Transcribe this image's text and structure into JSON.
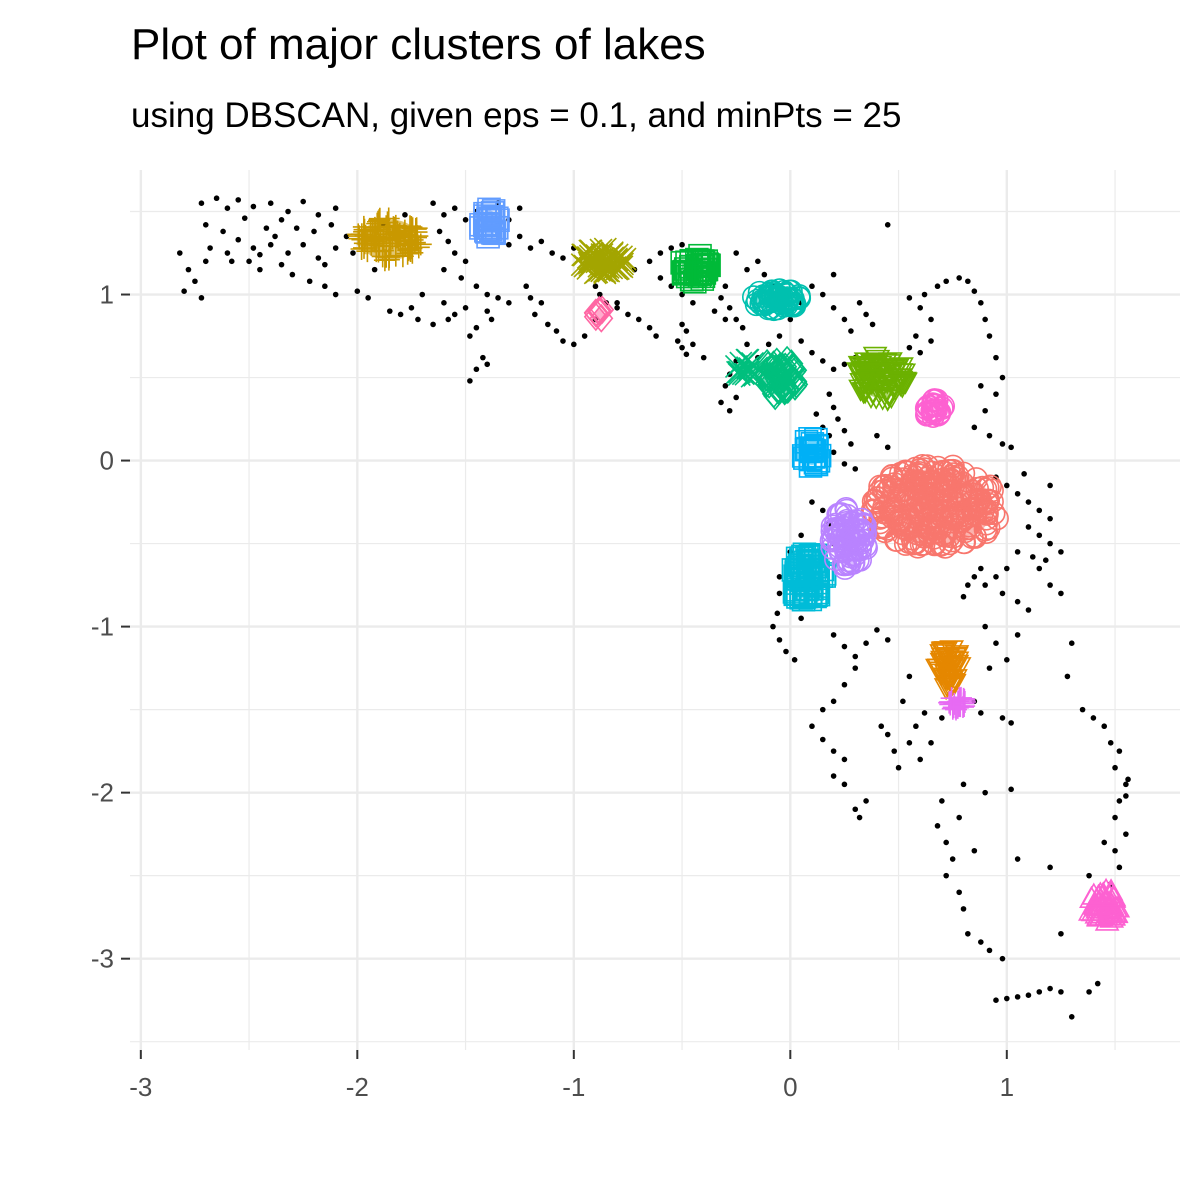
{
  "chart_data": {
    "type": "scatter",
    "title": "Plot of major clusters of lakes",
    "subtitle": "using DBSCAN, given eps = 0.1, and minPts = 25",
    "xlabel": "",
    "ylabel": "",
    "xlim": [
      -3.05,
      1.8
    ],
    "ylim": [
      -3.55,
      1.75
    ],
    "x_ticks": [
      -3,
      -2,
      -1,
      0,
      1
    ],
    "y_ticks": [
      -3,
      -2,
      -1,
      0,
      1
    ],
    "grid": true,
    "legend": "none",
    "noise_color": "#000000",
    "noise_points": [
      [
        -2.72,
        1.55
      ],
      [
        -2.65,
        1.58
      ],
      [
        -2.6,
        1.52
      ],
      [
        -2.55,
        1.57
      ],
      [
        -2.48,
        1.53
      ],
      [
        -2.4,
        1.55
      ],
      [
        -2.32,
        1.5
      ],
      [
        -2.25,
        1.56
      ],
      [
        -2.18,
        1.48
      ],
      [
        -2.1,
        1.52
      ],
      [
        -2.7,
        1.42
      ],
      [
        -2.62,
        1.38
      ],
      [
        -2.55,
        1.33
      ],
      [
        -2.48,
        1.28
      ],
      [
        -2.4,
        1.3
      ],
      [
        -2.32,
        1.25
      ],
      [
        -2.25,
        1.3
      ],
      [
        -2.18,
        1.22
      ],
      [
        -2.1,
        1.28
      ],
      [
        -2.05,
        1.35
      ],
      [
        -2.78,
        1.15
      ],
      [
        -2.75,
        1.08
      ],
      [
        -2.8,
        1.02
      ],
      [
        -2.72,
        0.98
      ],
      [
        -2.5,
        1.2
      ],
      [
        -2.45,
        1.15
      ],
      [
        -2.35,
        1.18
      ],
      [
        -2.3,
        1.12
      ],
      [
        -2.22,
        1.08
      ],
      [
        -2.15,
        1.05
      ],
      [
        -2.1,
        1.0
      ],
      [
        -2.0,
        1.02
      ],
      [
        -1.95,
        0.98
      ],
      [
        -2.6,
        1.25
      ],
      [
        -2.28,
        1.4
      ],
      [
        -2.2,
        1.38
      ],
      [
        -2.12,
        1.42
      ],
      [
        -2.35,
        1.45
      ],
      [
        -2.42,
        1.4
      ],
      [
        -2.68,
        1.28
      ],
      [
        -1.65,
        1.55
      ],
      [
        -1.6,
        1.48
      ],
      [
        -1.55,
        1.52
      ],
      [
        -1.5,
        1.45
      ],
      [
        -1.45,
        1.5
      ],
      [
        -1.62,
        1.38
      ],
      [
        -1.58,
        1.32
      ],
      [
        -1.55,
        1.25
      ],
      [
        -1.5,
        1.2
      ],
      [
        -1.6,
        1.15
      ],
      [
        -1.52,
        1.1
      ],
      [
        -1.45,
        1.05
      ],
      [
        -1.4,
        1.0
      ],
      [
        -1.35,
        0.98
      ],
      [
        -1.4,
        0.9
      ],
      [
        -1.38,
        0.85
      ],
      [
        -1.45,
        0.8
      ],
      [
        -1.5,
        0.92
      ],
      [
        -1.55,
        0.88
      ],
      [
        -1.48,
        0.75
      ],
      [
        -1.42,
        0.62
      ],
      [
        -1.45,
        0.55
      ],
      [
        -1.4,
        0.58
      ],
      [
        -1.48,
        0.48
      ],
      [
        -1.7,
        1.0
      ],
      [
        -1.75,
        0.92
      ],
      [
        -1.8,
        0.88
      ],
      [
        -1.72,
        0.85
      ],
      [
        -1.65,
        0.82
      ],
      [
        -1.58,
        0.85
      ],
      [
        -1.3,
        1.3
      ],
      [
        -1.25,
        1.35
      ],
      [
        -1.2,
        1.28
      ],
      [
        -1.15,
        1.32
      ],
      [
        -1.1,
        1.25
      ],
      [
        -1.05,
        1.22
      ],
      [
        -1.0,
        1.28
      ],
      [
        -0.95,
        1.24
      ],
      [
        -1.22,
        1.05
      ],
      [
        -1.2,
        0.98
      ],
      [
        -1.15,
        0.95
      ],
      [
        -1.18,
        0.88
      ],
      [
        -1.12,
        0.82
      ],
      [
        -1.08,
        0.78
      ],
      [
        -1.05,
        0.72
      ],
      [
        -1.0,
        0.7
      ],
      [
        -0.95,
        0.75
      ],
      [
        -0.9,
        1.05
      ],
      [
        -0.88,
        1.0
      ],
      [
        -0.85,
        0.95
      ],
      [
        -0.8,
        0.92
      ],
      [
        -0.75,
        0.88
      ],
      [
        -0.7,
        0.85
      ],
      [
        -0.72,
        1.15
      ],
      [
        -0.65,
        1.2
      ],
      [
        -0.6,
        1.25
      ],
      [
        -0.55,
        1.28
      ],
      [
        -0.5,
        1.3
      ],
      [
        -0.6,
        1.1
      ],
      [
        -0.55,
        1.05
      ],
      [
        -0.5,
        1.0
      ],
      [
        -0.45,
        0.95
      ],
      [
        -0.5,
        0.82
      ],
      [
        -0.48,
        0.78
      ],
      [
        -0.52,
        0.72
      ],
      [
        -0.5,
        0.68
      ],
      [
        -0.48,
        0.64
      ],
      [
        -0.45,
        0.7
      ],
      [
        -0.65,
        0.8
      ],
      [
        -0.62,
        0.75
      ],
      [
        -0.35,
        1.1
      ],
      [
        -0.3,
        1.05
      ],
      [
        -0.32,
        0.98
      ],
      [
        -0.28,
        0.92
      ],
      [
        -0.25,
        0.85
      ],
      [
        -0.22,
        0.8
      ],
      [
        -0.35,
        0.9
      ],
      [
        -0.3,
        0.85
      ],
      [
        -0.2,
        1.15
      ],
      [
        -0.15,
        1.2
      ],
      [
        -0.12,
        1.12
      ],
      [
        -0.08,
        1.05
      ],
      [
        -0.25,
        0.6
      ],
      [
        -0.28,
        0.52
      ],
      [
        -0.3,
        0.45
      ],
      [
        -0.32,
        0.35
      ],
      [
        -0.28,
        0.3
      ],
      [
        -0.25,
        0.38
      ],
      [
        -0.1,
        0.7
      ],
      [
        -0.05,
        0.75
      ],
      [
        0.05,
        0.72
      ],
      [
        0.1,
        0.65
      ],
      [
        0.15,
        0.6
      ],
      [
        0.2,
        0.55
      ],
      [
        0.25,
        0.58
      ],
      [
        0.3,
        0.62
      ],
      [
        0.28,
        0.78
      ],
      [
        0.25,
        0.85
      ],
      [
        0.2,
        0.92
      ],
      [
        0.15,
        1.0
      ],
      [
        0.1,
        1.05
      ],
      [
        0.2,
        1.12
      ],
      [
        0.32,
        0.95
      ],
      [
        0.35,
        0.88
      ],
      [
        0.38,
        0.82
      ],
      [
        0.18,
        0.4
      ],
      [
        0.2,
        0.32
      ],
      [
        0.22,
        0.25
      ],
      [
        0.25,
        0.18
      ],
      [
        0.28,
        0.1
      ],
      [
        0.18,
        0.15
      ],
      [
        0.15,
        0.2
      ],
      [
        0.12,
        0.28
      ],
      [
        0.2,
        0.05
      ],
      [
        0.25,
        -0.02
      ],
      [
        0.3,
        -0.05
      ],
      [
        0.45,
        1.42
      ],
      [
        0.55,
        0.98
      ],
      [
        0.6,
        0.92
      ],
      [
        0.65,
        0.85
      ],
      [
        0.62,
        1.0
      ],
      [
        0.68,
        1.05
      ],
      [
        0.72,
        1.08
      ],
      [
        0.78,
        1.1
      ],
      [
        0.82,
        1.08
      ],
      [
        0.85,
        1.02
      ],
      [
        0.88,
        0.95
      ],
      [
        0.9,
        0.85
      ],
      [
        0.92,
        0.75
      ],
      [
        0.95,
        0.62
      ],
      [
        0.98,
        0.5
      ],
      [
        0.95,
        0.4
      ],
      [
        0.9,
        0.3
      ],
      [
        0.88,
        0.45
      ],
      [
        0.85,
        0.2
      ],
      [
        0.92,
        0.15
      ],
      [
        0.98,
        0.1
      ],
      [
        1.02,
        0.08
      ],
      [
        0.6,
        0.65
      ],
      [
        0.65,
        0.72
      ],
      [
        0.58,
        0.75
      ],
      [
        0.55,
        0.68
      ],
      [
        0.95,
        -0.1
      ],
      [
        1.0,
        -0.15
      ],
      [
        1.05,
        -0.2
      ],
      [
        1.1,
        -0.25
      ],
      [
        1.15,
        -0.3
      ],
      [
        1.2,
        -0.35
      ],
      [
        1.1,
        -0.4
      ],
      [
        1.15,
        -0.45
      ],
      [
        1.2,
        -0.5
      ],
      [
        1.25,
        -0.55
      ],
      [
        1.18,
        -0.6
      ],
      [
        1.12,
        -0.58
      ],
      [
        1.05,
        -0.55
      ],
      [
        1.0,
        -0.65
      ],
      [
        0.95,
        -0.7
      ],
      [
        0.9,
        -0.75
      ],
      [
        0.98,
        -0.8
      ],
      [
        1.05,
        -0.85
      ],
      [
        1.1,
        -0.9
      ],
      [
        1.2,
        -0.75
      ],
      [
        1.25,
        -0.8
      ],
      [
        1.15,
        -0.65
      ],
      [
        0.88,
        -0.65
      ],
      [
        0.85,
        -0.7
      ],
      [
        0.82,
        -0.75
      ],
      [
        0.8,
        -0.82
      ],
      [
        1.3,
        -1.1
      ],
      [
        1.28,
        -1.3
      ],
      [
        1.0,
        -1.2
      ],
      [
        1.05,
        -1.05
      ],
      [
        0.95,
        -1.1
      ],
      [
        0.9,
        -1.0
      ],
      [
        0.92,
        -1.25
      ],
      [
        0.85,
        -1.45
      ],
      [
        0.88,
        -1.52
      ],
      [
        0.98,
        -1.55
      ],
      [
        1.02,
        -1.58
      ],
      [
        1.35,
        -1.5
      ],
      [
        1.4,
        -1.55
      ],
      [
        1.45,
        -1.6
      ],
      [
        1.48,
        -1.7
      ],
      [
        1.52,
        -1.75
      ],
      [
        1.5,
        -1.85
      ],
      [
        1.55,
        -1.95
      ],
      [
        1.52,
        -2.05
      ],
      [
        1.5,
        -2.15
      ],
      [
        1.55,
        -2.25
      ],
      [
        1.5,
        -2.35
      ],
      [
        1.52,
        -2.45
      ],
      [
        1.48,
        -2.55
      ],
      [
        1.55,
        -2.02
      ],
      [
        1.56,
        -1.92
      ],
      [
        1.45,
        -2.3
      ],
      [
        1.38,
        -2.5
      ],
      [
        0.1,
        -0.25
      ],
      [
        0.15,
        -0.3
      ],
      [
        0.18,
        -0.38
      ],
      [
        0.2,
        -0.5
      ],
      [
        0.05,
        -0.45
      ],
      [
        0.0,
        -0.55
      ],
      [
        -0.05,
        -0.7
      ],
      [
        -0.05,
        -0.8
      ],
      [
        -0.06,
        -0.92
      ],
      [
        -0.08,
        -1.0
      ],
      [
        -0.05,
        -1.08
      ],
      [
        -0.02,
        -1.15
      ],
      [
        0.02,
        -1.2
      ],
      [
        0.05,
        -0.95
      ],
      [
        0.2,
        -1.05
      ],
      [
        0.25,
        -1.12
      ],
      [
        0.3,
        -1.18
      ],
      [
        0.35,
        -1.1
      ],
      [
        0.4,
        -1.02
      ],
      [
        0.45,
        -1.08
      ],
      [
        0.3,
        -1.25
      ],
      [
        0.25,
        -1.35
      ],
      [
        0.2,
        -1.45
      ],
      [
        0.15,
        -1.5
      ],
      [
        0.1,
        -1.6
      ],
      [
        0.15,
        -1.68
      ],
      [
        0.2,
        -1.75
      ],
      [
        0.25,
        -1.8
      ],
      [
        0.2,
        -1.9
      ],
      [
        0.25,
        -1.95
      ],
      [
        0.3,
        -2.1
      ],
      [
        0.35,
        -2.05
      ],
      [
        0.32,
        -2.15
      ],
      [
        0.5,
        -1.85
      ],
      [
        0.48,
        -1.75
      ],
      [
        0.45,
        -1.65
      ],
      [
        0.42,
        -1.6
      ],
      [
        0.55,
        -1.7
      ],
      [
        0.6,
        -1.8
      ],
      [
        0.65,
        -1.7
      ],
      [
        0.58,
        -1.6
      ],
      [
        0.62,
        -1.52
      ],
      [
        0.7,
        -1.55
      ],
      [
        0.52,
        -1.45
      ],
      [
        0.68,
        -2.2
      ],
      [
        0.72,
        -2.3
      ],
      [
        0.75,
        -2.4
      ],
      [
        0.72,
        -2.5
      ],
      [
        0.78,
        -2.6
      ],
      [
        0.8,
        -2.7
      ],
      [
        0.82,
        -2.85
      ],
      [
        0.88,
        -2.9
      ],
      [
        0.92,
        -2.95
      ],
      [
        0.98,
        -3.0
      ],
      [
        0.95,
        -3.25
      ],
      [
        1.0,
        -3.24
      ],
      [
        1.05,
        -3.23
      ],
      [
        1.1,
        -3.22
      ],
      [
        1.15,
        -3.2
      ],
      [
        1.2,
        -3.18
      ],
      [
        1.25,
        -3.2
      ],
      [
        1.3,
        -3.35
      ],
      [
        1.38,
        -3.2
      ],
      [
        1.42,
        -3.15
      ],
      [
        1.05,
        -2.4
      ],
      [
        1.2,
        -2.45
      ],
      [
        1.25,
        -2.85
      ],
      [
        0.85,
        -2.35
      ],
      [
        0.78,
        -2.15
      ],
      [
        0.7,
        -2.05
      ],
      [
        0.8,
        -1.95
      ],
      [
        0.9,
        -2.0
      ],
      [
        1.02,
        -1.98
      ],
      [
        0.55,
        -1.3
      ],
      [
        -0.8,
        0.95
      ],
      [
        -0.9,
        0.85
      ],
      [
        -1.3,
        0.95
      ],
      [
        -1.6,
        0.95
      ],
      [
        -1.85,
        0.9
      ],
      [
        -1.92,
        1.15
      ],
      [
        -1.88,
        1.42
      ],
      [
        -1.78,
        1.48
      ],
      [
        -2.02,
        1.25
      ],
      [
        -2.15,
        1.18
      ],
      [
        -2.52,
        1.46
      ],
      [
        -2.38,
        1.35
      ],
      [
        -2.45,
        1.24
      ],
      [
        -2.58,
        1.2
      ],
      [
        -2.7,
        1.2
      ],
      [
        -2.82,
        1.25
      ],
      [
        -1.3,
        1.45
      ],
      [
        -1.35,
        1.55
      ],
      [
        -1.25,
        1.52
      ],
      [
        -0.25,
        1.25
      ],
      [
        0.4,
        0.15
      ],
      [
        0.45,
        0.08
      ],
      [
        0.0,
        0.85
      ],
      [
        0.05,
        0.95
      ],
      [
        -0.15,
        0.62
      ],
      [
        -0.2,
        0.7
      ],
      [
        -0.4,
        0.62
      ],
      [
        0.8,
        -0.3
      ],
      [
        1.08,
        -0.08
      ],
      [
        1.2,
        -0.15
      ]
    ],
    "clusters": [
      {
        "id": 1,
        "color": "#F8766D",
        "marker": "circle",
        "cx": 0.67,
        "cy": -0.28,
        "rx": 0.35,
        "ry": 0.3,
        "n": 260
      },
      {
        "id": 2,
        "color": "#E58700",
        "marker": "triangle-down",
        "cx": 0.73,
        "cy": -1.25,
        "rx": 0.06,
        "ry": 0.15,
        "n": 45
      },
      {
        "id": 3,
        "color": "#C99800",
        "marker": "plus",
        "cx": -1.85,
        "cy": 1.33,
        "rx": 0.18,
        "ry": 0.16,
        "n": 90
      },
      {
        "id": 4,
        "color": "#A3A500",
        "marker": "x",
        "cx": -0.87,
        "cy": 1.2,
        "rx": 0.13,
        "ry": 0.09,
        "n": 60
      },
      {
        "id": 5,
        "color": "#6BB100",
        "marker": "triangle-down",
        "cx": 0.42,
        "cy": 0.5,
        "rx": 0.14,
        "ry": 0.16,
        "n": 80
      },
      {
        "id": 6,
        "color": "#00BA38",
        "marker": "square",
        "cx": -0.44,
        "cy": 1.16,
        "rx": 0.08,
        "ry": 0.1,
        "n": 45
      },
      {
        "id": 7,
        "color": "#00BF7D",
        "marker": "diamond",
        "cx": -0.05,
        "cy": 0.5,
        "rx": 0.1,
        "ry": 0.14,
        "n": 55
      },
      {
        "id": 8,
        "color": "#00C0AF",
        "marker": "circle",
        "cx": -0.06,
        "cy": 0.97,
        "rx": 0.14,
        "ry": 0.07,
        "n": 60
      },
      {
        "id": 9,
        "color": "#00BCD8",
        "marker": "square",
        "cx": 0.08,
        "cy": -0.7,
        "rx": 0.1,
        "ry": 0.18,
        "n": 80
      },
      {
        "id": 10,
        "color": "#00B0F6",
        "marker": "square",
        "cx": 0.1,
        "cy": 0.05,
        "rx": 0.05,
        "ry": 0.1,
        "n": 25
      },
      {
        "id": 11,
        "color": "#619CFF",
        "marker": "square",
        "cx": -1.39,
        "cy": 1.43,
        "rx": 0.05,
        "ry": 0.1,
        "n": 30
      },
      {
        "id": 12,
        "color": "#B983FF",
        "marker": "circle",
        "cx": 0.27,
        "cy": -0.47,
        "rx": 0.1,
        "ry": 0.22,
        "n": 80
      },
      {
        "id": 13,
        "color": "#E76BF3",
        "marker": "plus",
        "cx": 0.77,
        "cy": -1.46,
        "rx": 0.05,
        "ry": 0.05,
        "n": 25
      },
      {
        "id": 14,
        "color": "#FD61D1",
        "marker": "triangle",
        "cx": 1.45,
        "cy": -2.68,
        "rx": 0.08,
        "ry": 0.12,
        "n": 50
      },
      {
        "id": 15,
        "color": "#FF67A4",
        "marker": "diamond",
        "cx": -0.88,
        "cy": 0.88,
        "rx": 0.03,
        "ry": 0.04,
        "n": 8
      },
      {
        "id": 16,
        "color": "#FD61D1",
        "marker": "circle",
        "cx": 0.66,
        "cy": 0.32,
        "rx": 0.06,
        "ry": 0.08,
        "n": 25
      },
      {
        "id": 17,
        "color": "#00BF7D",
        "marker": "x",
        "cx": -0.2,
        "cy": 0.55,
        "rx": 0.06,
        "ry": 0.07,
        "n": 18
      }
    ]
  }
}
